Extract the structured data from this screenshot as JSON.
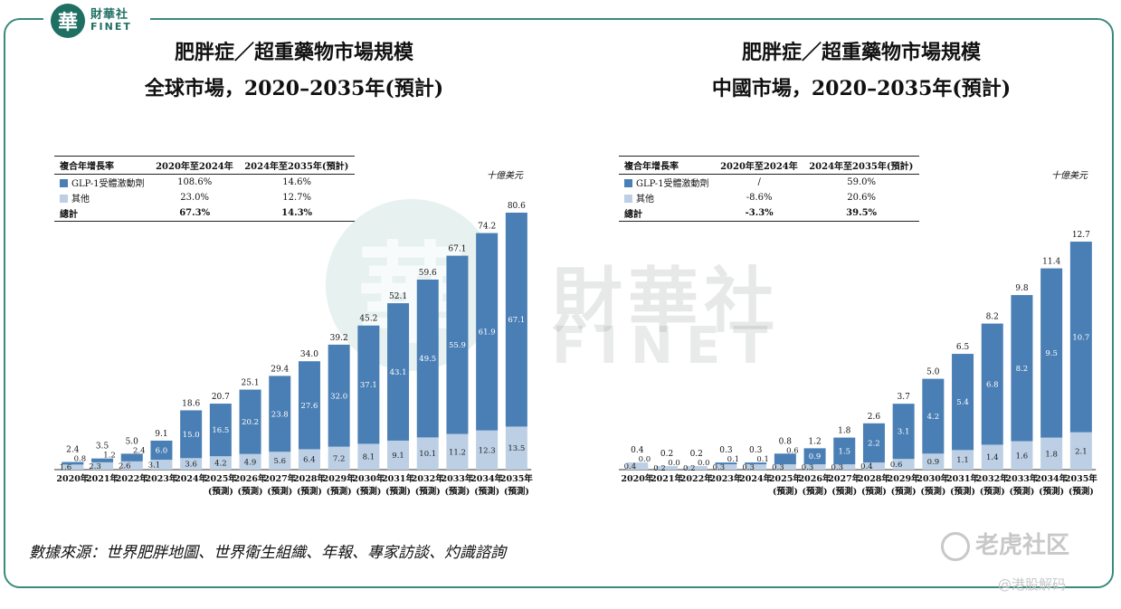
{
  "brand": {
    "logo_char": "華",
    "logo_cn": "財華社",
    "logo_en": "FINET"
  },
  "colors": {
    "glp1": "#4a7fb5",
    "other": "#bccfe4",
    "border": "#3a8a7d"
  },
  "left": {
    "title_line1": "肥胖症／超重藥物市場規模",
    "title_line2": "全球市場，2020–2035年(預計)",
    "unit": "十億美元",
    "cagr": {
      "headers": [
        "複合年增長率",
        "2020年至2024年",
        "2024年至2035年(預計)"
      ],
      "rows": [
        {
          "label": "GLP-1受體激動劑",
          "a": "108.6%",
          "b": "14.6%"
        },
        {
          "label": "其他",
          "a": "23.0%",
          "b": "12.7%"
        },
        {
          "label": "總計",
          "a": "67.3%",
          "b": "14.3%"
        }
      ]
    }
  },
  "right": {
    "title_line1": "肥胖症／超重藥物市場規模",
    "title_line2": "中國市場，2020–2035年(預計)",
    "unit": "十億美元",
    "cagr": {
      "headers": [
        "複合年增長率",
        "2020年至2024年",
        "2024年至2035年(預計)"
      ],
      "rows": [
        {
          "label": "GLP-1受體激動劑",
          "a": "/",
          "b": "59.0%"
        },
        {
          "label": "其他",
          "a": "-8.6%",
          "b": "20.6%"
        },
        {
          "label": "總計",
          "a": "-3.3%",
          "b": "39.5%"
        }
      ]
    }
  },
  "chart_data": [
    {
      "type": "bar",
      "stacked": true,
      "categories": [
        "2020年",
        "2021年",
        "2022年",
        "2023年",
        "2024年",
        "2025年",
        "2026年",
        "2027年",
        "2028年",
        "2029年",
        "2030年",
        "2031年",
        "2032年",
        "2033年",
        "2034年",
        "2035年"
      ],
      "projected_label": "(預測)",
      "projected_from_index": 5,
      "series": [
        {
          "name": "其他",
          "values": [
            1.6,
            2.3,
            2.6,
            3.1,
            3.6,
            4.2,
            4.9,
            5.6,
            6.4,
            7.2,
            8.1,
            9.1,
            10.1,
            11.2,
            12.3,
            13.5
          ]
        },
        {
          "name": "GLP-1受體激動劑",
          "values": [
            0.8,
            1.2,
            2.4,
            6.0,
            15.0,
            16.5,
            20.2,
            23.8,
            27.6,
            32.0,
            37.1,
            43.1,
            49.5,
            55.9,
            61.9,
            67.1
          ]
        }
      ],
      "totals": [
        2.4,
        3.5,
        5.0,
        9.1,
        18.6,
        20.7,
        25.1,
        29.4,
        34.0,
        39.2,
        45.2,
        52.1,
        59.6,
        67.1,
        74.2,
        80.6
      ],
      "ylim": [
        0,
        80.6
      ]
    },
    {
      "type": "bar",
      "stacked": true,
      "categories": [
        "2020年",
        "2021年",
        "2022年",
        "2023年",
        "2024年",
        "2025年",
        "2026年",
        "2027年",
        "2028年",
        "2029年",
        "2030年",
        "2031年",
        "2032年",
        "2033年",
        "2034年",
        "2035年"
      ],
      "projected_label": "(預測)",
      "projected_from_index": 5,
      "series": [
        {
          "name": "其他",
          "values": [
            0.4,
            0.2,
            0.2,
            0.3,
            0.3,
            0.3,
            0.3,
            0.3,
            0.4,
            0.6,
            0.9,
            1.1,
            1.4,
            1.6,
            1.8,
            2.1
          ]
        },
        {
          "name": "GLP-1受體激動劑",
          "values": [
            0.0,
            0.0,
            0.0,
            0.1,
            0.1,
            0.6,
            0.9,
            1.5,
            2.2,
            3.1,
            4.2,
            5.4,
            6.8,
            8.2,
            9.5,
            10.7
          ]
        }
      ],
      "totals": [
        0.4,
        0.2,
        0.2,
        0.3,
        0.3,
        0.8,
        1.2,
        1.8,
        2.6,
        3.7,
        5.0,
        6.5,
        8.2,
        9.8,
        11.4,
        12.7
      ],
      "ylim": [
        0,
        12.7
      ]
    }
  ],
  "source": "數據來源：世界肥胖地圖、世界衛生組織、年報、專家訪談、灼識諮詢",
  "footer": {
    "community": "老虎社区",
    "handle": "@港股解码"
  }
}
